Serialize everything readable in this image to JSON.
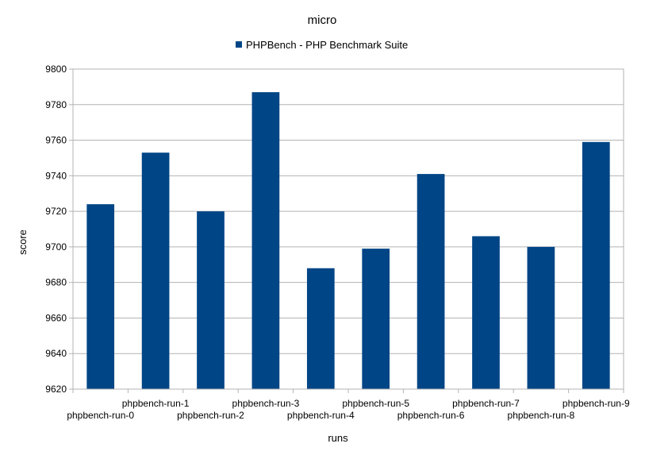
{
  "chart_data": {
    "type": "bar",
    "title": "micro",
    "xlabel": "runs",
    "ylabel": "score",
    "ylim": [
      9620,
      9800
    ],
    "yticks": [
      9620,
      9640,
      9660,
      9680,
      9700,
      9720,
      9740,
      9760,
      9780,
      9800
    ],
    "grid": true,
    "legend_position": "top",
    "categories": [
      "phpbench-run-0",
      "phpbench-run-1",
      "phpbench-run-2",
      "phpbench-run-3",
      "phpbench-run-4",
      "phpbench-run-5",
      "phpbench-run-6",
      "phpbench-run-7",
      "phpbench-run-8",
      "phpbench-run-9"
    ],
    "series": [
      {
        "name": "PHPBench - PHP Benchmark Suite",
        "color": "#004586",
        "values": [
          9724,
          9753,
          9720,
          9787,
          9688,
          9699,
          9741,
          9706,
          9700,
          9759
        ]
      }
    ]
  }
}
